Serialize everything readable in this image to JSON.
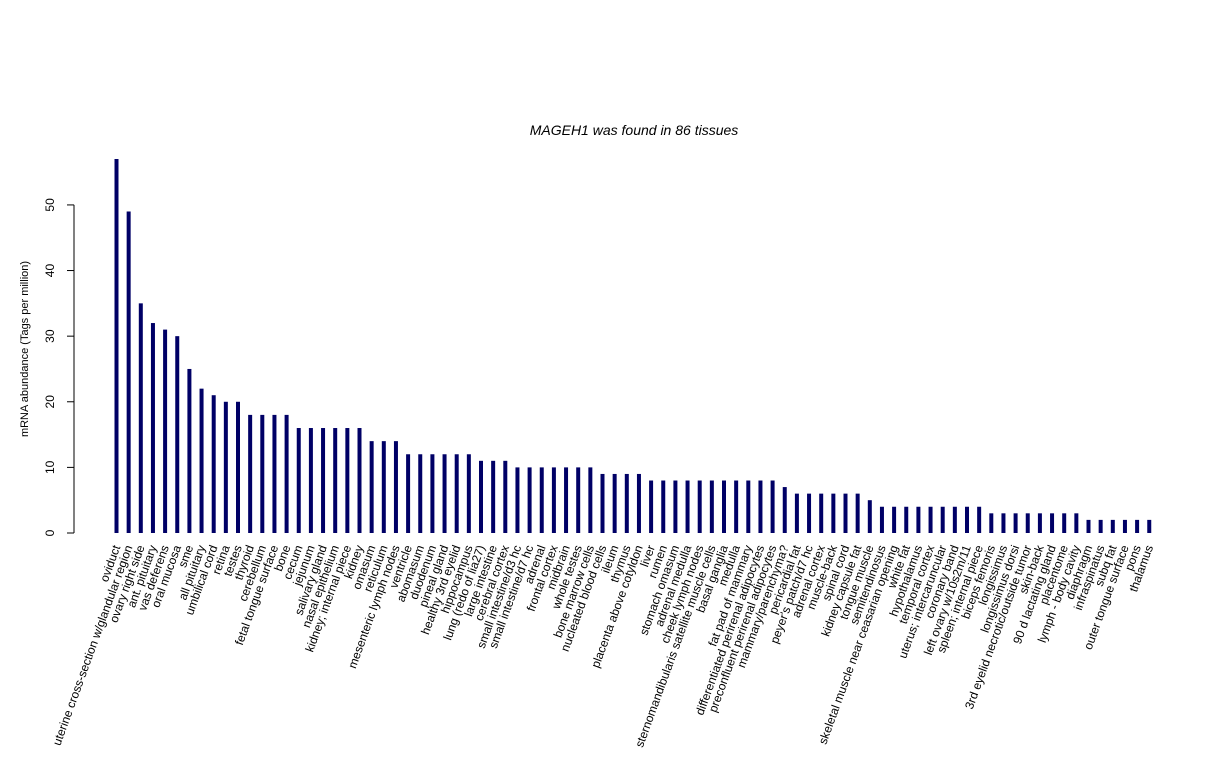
{
  "chart_data": {
    "type": "bar",
    "title": "MAGEH1  was found in  86  tissues",
    "xlabel": "",
    "ylabel": "mRNA abundance (Tags per million)",
    "ylim": [
      0,
      57
    ],
    "yticks": [
      0,
      10,
      20,
      30,
      40,
      50
    ],
    "grid": false,
    "bar_color": "#000066",
    "categories": [
      "oviduct",
      "uterine cross-section w/glandular region",
      "ovary right side",
      "ant. pituitary",
      "vas deferens",
      "oral mucosa",
      "sme",
      "all pituitary",
      "umbilical cord",
      "retina",
      "testes",
      "thyroid",
      "cerebellum",
      "fetal tongue surface",
      "bone",
      "cecum",
      "jejunum",
      "salivary gland",
      "nasal epithelium",
      "kidney; internal piece",
      "kidney",
      "omasum",
      "reticulum",
      "mesenteric lymph nodes",
      "ventricle",
      "abomasum",
      "duodenum",
      "pineal gland",
      "healthy 3rd eyelid",
      "hippocampus",
      "lung (redo of lia27)",
      "large intestine",
      "cerebral cortex",
      "small intestine/d3 hc",
      "small intestine/d7 hc",
      "adrenal",
      "frontal cortex",
      "midbrain",
      "whole testes",
      "bone marrow cells",
      "nucleated blood cells",
      "ileum",
      "thymus",
      "placenta above cotyldon",
      "liver",
      "rumen",
      "stomach omasum",
      "adrenal medulla",
      "cheek lymph nodes",
      "sternomandibularis satellite muscle cells",
      "basal ganglia",
      "medulla",
      "fat pad of mammary",
      "differentiated perirenal adipocytes",
      "preconfluent perirenal adipocytes",
      "mammary/parenchyma?",
      "pericardial fat",
      "peyer's patch/d7 hc",
      "adrenal cortex",
      "muscle-back",
      "spinal cord",
      "kidney capsule fat",
      "tongue muscle",
      "semitendinosus",
      "skeletal muscle near ceasarian opening",
      "white fat",
      "hypothalamus",
      "temporal cortex",
      "uterus; intercaruncular",
      "coronary band",
      "left ovary w/10s2m/11",
      "spleen; internal piece",
      "biceps femoris",
      "longissimus",
      "longissimus dorsi",
      "3rd eyelid necrotic/outside tumor",
      "skin-back",
      "90 d lactating gland",
      "placentome",
      "lymph - body cavity",
      "diaphragm",
      "infraspinatus",
      "subq fat",
      "outer tongue surface",
      "pons",
      "thalamus"
    ],
    "values": [
      57,
      49,
      35,
      32,
      31,
      30,
      25,
      22,
      21,
      20,
      20,
      18,
      18,
      18,
      18,
      16,
      16,
      16,
      16,
      16,
      16,
      14,
      14,
      14,
      12,
      12,
      12,
      12,
      12,
      12,
      11,
      11,
      11,
      10,
      10,
      10,
      10,
      10,
      10,
      10,
      9,
      9,
      9,
      9,
      8,
      8,
      8,
      8,
      8,
      8,
      8,
      8,
      8,
      8,
      8,
      7,
      6,
      6,
      6,
      6,
      6,
      6,
      5,
      4,
      4,
      4,
      4,
      4,
      4,
      4,
      4,
      4,
      3,
      3,
      3,
      3,
      3,
      3,
      3,
      3,
      2,
      2,
      2,
      2,
      2,
      2
    ]
  }
}
